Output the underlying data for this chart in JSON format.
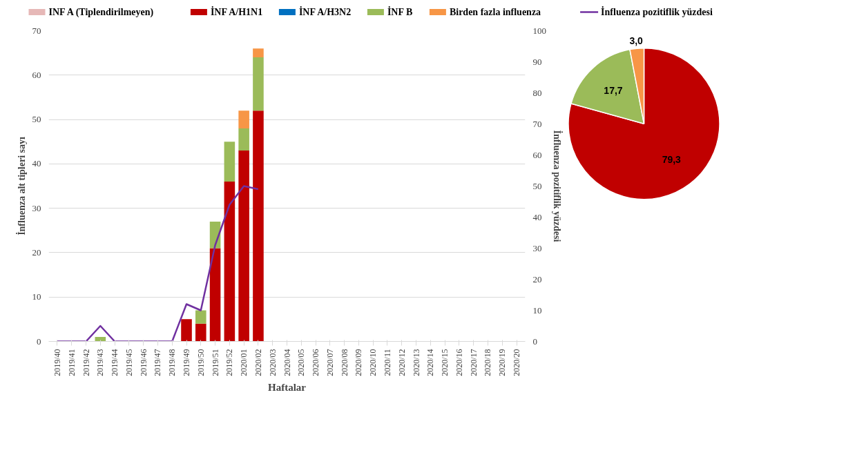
{
  "chart_data": [
    {
      "type": "bar",
      "stacked": true,
      "xlabel": "Haftalar",
      "ylabel": "İnfluenza alt tipleri sayı",
      "y2label": "İnfluenza pozitiflik yüzdesi",
      "categories": [
        "2019/40",
        "2019/41",
        "2019/42",
        "2019/43",
        "2019/44",
        "2019/45",
        "2019/46",
        "2019/47",
        "2019/48",
        "2019/49",
        "2019/50",
        "2019/51",
        "2019/52",
        "2020/01",
        "2020/02",
        "2020/03",
        "2020/04",
        "2020/05",
        "2020/06",
        "2020/07",
        "2020/08",
        "2020/09",
        "2020/10",
        "2020/11",
        "2020/12",
        "2020/13",
        "2020/14",
        "2020/15",
        "2020/16",
        "2020/17",
        "2020/18",
        "2020/19",
        "2020/20"
      ],
      "series": [
        {
          "name": "INF A (Tiplendirilmeyen)",
          "color": "#e6b8b7",
          "values": [
            null,
            null,
            null,
            null,
            null,
            null,
            null,
            null,
            null,
            null,
            null,
            null,
            null,
            null,
            null,
            null,
            null,
            null,
            null,
            null,
            null,
            null,
            null,
            null,
            null,
            null,
            null,
            null,
            null,
            null,
            null,
            null,
            null
          ]
        },
        {
          "name": "İNF A/H1N1",
          "color": "#c00000",
          "values": [
            null,
            null,
            null,
            null,
            null,
            null,
            null,
            null,
            null,
            5,
            4,
            21,
            36,
            43,
            52,
            null,
            null,
            null,
            null,
            null,
            null,
            null,
            null,
            null,
            null,
            null,
            null,
            null,
            null,
            null,
            null,
            null,
            null
          ]
        },
        {
          "name": "İNF A/H3N2",
          "color": "#0070c0",
          "values": [
            null,
            null,
            null,
            null,
            null,
            null,
            null,
            null,
            null,
            null,
            null,
            null,
            null,
            null,
            null,
            null,
            null,
            null,
            null,
            null,
            null,
            null,
            null,
            null,
            null,
            null,
            null,
            null,
            null,
            null,
            null,
            null,
            null
          ]
        },
        {
          "name": "İNF B",
          "color": "#9bbb59",
          "values": [
            null,
            null,
            null,
            1,
            null,
            null,
            null,
            null,
            null,
            null,
            3,
            6,
            9,
            5,
            12,
            null,
            null,
            null,
            null,
            null,
            null,
            null,
            null,
            null,
            null,
            null,
            null,
            null,
            null,
            null,
            null,
            null,
            null
          ]
        },
        {
          "name": "Birden fazla influenza",
          "color": "#f79646",
          "values": [
            null,
            null,
            null,
            null,
            null,
            null,
            null,
            null,
            null,
            null,
            null,
            null,
            null,
            4,
            2,
            null,
            null,
            null,
            null,
            null,
            null,
            null,
            null,
            null,
            null,
            null,
            null,
            null,
            null,
            null,
            null,
            null,
            null
          ]
        },
        {
          "name": "İnfluenza pozitiflik yüzdesi",
          "color": "#7030a0",
          "type": "line",
          "axis": "y2",
          "values": [
            0,
            0,
            0,
            5,
            0,
            0,
            0,
            0,
            0,
            12,
            10,
            31,
            44,
            50,
            49,
            null,
            null,
            null,
            null,
            null,
            null,
            null,
            null,
            null,
            null,
            null,
            null,
            null,
            null,
            null,
            null,
            null,
            null
          ]
        }
      ],
      "ylim": [
        0,
        70
      ],
      "yticks": [
        0,
        10,
        20,
        30,
        40,
        50,
        60,
        70
      ],
      "y2lim": [
        0,
        100
      ],
      "y2ticks": [
        0,
        10,
        20,
        30,
        40,
        50,
        60,
        70,
        80,
        90,
        100
      ],
      "grid": "y",
      "legend": "top"
    },
    {
      "type": "pie",
      "categories": [
        null,
        null,
        null
      ],
      "values": [
        79.3,
        17.7,
        3.0
      ],
      "colors": [
        "#c00000",
        "#9bbb59",
        "#f79646"
      ],
      "value_labels": [
        "79,3",
        "17,7",
        "3,0"
      ]
    }
  ]
}
